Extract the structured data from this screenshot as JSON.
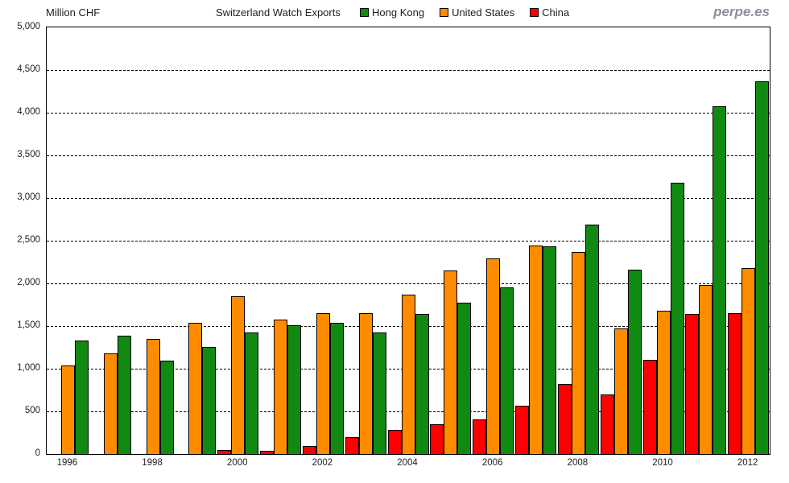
{
  "header": {
    "unit_label": "Million CHF",
    "title": "Switzerland Watch Exports",
    "watermark": "perpe.es"
  },
  "legend": [
    {
      "label": "Hong Kong",
      "color": "#118a11"
    },
    {
      "label": "United States",
      "color": "#ff8c00"
    },
    {
      "label": "China",
      "color": "#ff0000"
    }
  ],
  "chart_data": {
    "type": "bar",
    "title": "Switzerland Watch Exports",
    "ylabel": "Million CHF",
    "ylim": [
      0,
      5000
    ],
    "ytick_interval": 500,
    "yticks": [
      0,
      500,
      1000,
      1500,
      2000,
      2500,
      3000,
      3500,
      4000,
      4500,
      5000
    ],
    "ytick_labels": [
      "0",
      "500",
      "1,000",
      "1,500",
      "2,000",
      "2,500",
      "3,000",
      "3,500",
      "4,000",
      "4,500",
      "5,000"
    ],
    "grid": "horizontal-dashed",
    "legend_position": "top",
    "categories": [
      1996,
      1997,
      1998,
      1999,
      2000,
      2001,
      2002,
      2003,
      2004,
      2005,
      2006,
      2007,
      2008,
      2009,
      2010,
      2011,
      2012
    ],
    "x_axis_ticks": [
      1996,
      1998,
      2000,
      2002,
      2004,
      2006,
      2008,
      2010,
      2012
    ],
    "series": [
      {
        "name": "China",
        "color": "#ff0000",
        "values": [
          0,
          0,
          0,
          0,
          45,
          35,
          95,
          200,
          280,
          345,
          405,
          570,
          825,
          695,
          1100,
          1640,
          1650
        ]
      },
      {
        "name": "United States",
        "color": "#ff8c00",
        "values": [
          1040,
          1175,
          1345,
          1535,
          1845,
          1580,
          1650,
          1655,
          1870,
          2150,
          2290,
          2440,
          2370,
          1470,
          1680,
          1985,
          2180
        ]
      },
      {
        "name": "Hong Kong",
        "color": "#118a11",
        "values": [
          1330,
          1390,
          1095,
          1255,
          1420,
          1510,
          1540,
          1420,
          1640,
          1775,
          1950,
          2430,
          2690,
          2165,
          3180,
          4080,
          4365
        ]
      }
    ]
  }
}
